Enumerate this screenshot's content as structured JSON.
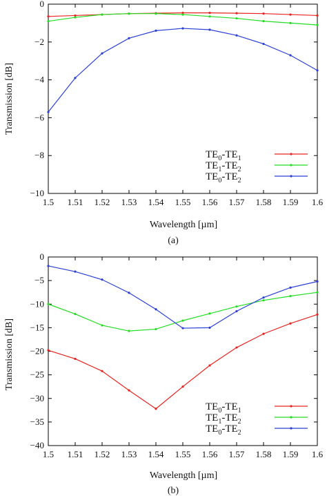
{
  "chart_data": [
    {
      "type": "line",
      "caption": "(a)",
      "xlabel": "Wavelength [µm]",
      "ylabel": "Transmission [dB]",
      "xlim": [
        1.5,
        1.6
      ],
      "ylim": [
        -10,
        0
      ],
      "xticks": [
        "1.5",
        "1.51",
        "1.52",
        "1.53",
        "1.54",
        "1.55",
        "1.56",
        "1.57",
        "1.58",
        "1.59",
        "1.6"
      ],
      "yticks": [
        "0",
        "−2",
        "−4",
        "−6",
        "−8",
        "−10"
      ],
      "grid": false,
      "legend_position": "bottom-right",
      "x": [
        1.5,
        1.51,
        1.52,
        1.53,
        1.54,
        1.55,
        1.56,
        1.57,
        1.58,
        1.59,
        1.6
      ],
      "series": [
        {
          "name": "TE0-TE1",
          "label_parts": [
            "TE",
            "0",
            "-TE",
            "1"
          ],
          "color": "#e8231f",
          "values": [
            -0.65,
            -0.6,
            -0.55,
            -0.5,
            -0.48,
            -0.46,
            -0.46,
            -0.48,
            -0.5,
            -0.55,
            -0.6
          ]
        },
        {
          "name": "TE1-TE2",
          "label_parts": [
            "TE",
            "1",
            "-TE",
            "2"
          ],
          "color": "#22dd22",
          "values": [
            -0.9,
            -0.7,
            -0.55,
            -0.5,
            -0.5,
            -0.55,
            -0.65,
            -0.75,
            -0.9,
            -1.0,
            -1.1
          ]
        },
        {
          "name": "TE0-TE2",
          "label_parts": [
            "TE",
            "0",
            "-TE",
            "2"
          ],
          "color": "#2a3fd6",
          "values": [
            -5.7,
            -3.9,
            -2.6,
            -1.8,
            -1.4,
            -1.28,
            -1.35,
            -1.65,
            -2.1,
            -2.7,
            -3.5
          ]
        }
      ]
    },
    {
      "type": "line",
      "caption": "(b)",
      "xlabel": "Wavelength [µm]",
      "ylabel": "Transmission [dB]",
      "xlim": [
        1.5,
        1.6
      ],
      "ylim": [
        -40,
        0
      ],
      "xticks": [
        "1.5",
        "1.51",
        "1.52",
        "1.53",
        "1.54",
        "1.55",
        "1.56",
        "1.57",
        "1.58",
        "1.59",
        "1.6"
      ],
      "yticks": [
        "0",
        "−5",
        "−10",
        "−15",
        "−20",
        "−25",
        "−30",
        "−35",
        "−40"
      ],
      "grid": false,
      "legend_position": "bottom-right",
      "x": [
        1.5,
        1.51,
        1.52,
        1.53,
        1.54,
        1.55,
        1.56,
        1.57,
        1.58,
        1.59,
        1.6
      ],
      "series": [
        {
          "name": "TE0-TE1",
          "label_parts": [
            "TE",
            "0",
            "-TE",
            "1"
          ],
          "color": "#e8231f",
          "values": [
            -19.8,
            -21.6,
            -24.2,
            -28.3,
            -32.2,
            -27.5,
            -23.0,
            -19.2,
            -16.3,
            -14.1,
            -12.2
          ]
        },
        {
          "name": "TE1-TE2",
          "label_parts": [
            "TE",
            "1",
            "-TE",
            "2"
          ],
          "color": "#22dd22",
          "values": [
            -10.0,
            -12.1,
            -14.5,
            -15.7,
            -15.3,
            -13.5,
            -12.0,
            -10.5,
            -9.2,
            -8.3,
            -7.5
          ]
        },
        {
          "name": "TE0-TE2",
          "label_parts": [
            "TE",
            "0",
            "-TE",
            "2"
          ],
          "color": "#2a3fd6",
          "values": [
            -1.9,
            -3.1,
            -4.8,
            -7.6,
            -11.1,
            -15.1,
            -15.0,
            -11.5,
            -8.6,
            -6.5,
            -5.2
          ]
        }
      ]
    }
  ]
}
